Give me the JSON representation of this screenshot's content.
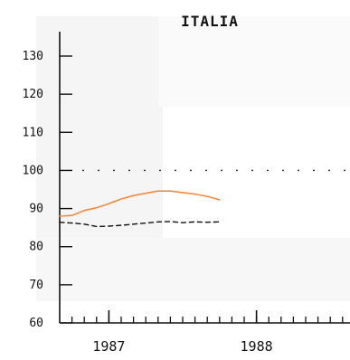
{
  "chart_data": {
    "type": "line",
    "title": "ITALIA",
    "xlabel": "",
    "ylabel": "",
    "x": [
      "1986-11",
      "1986-12",
      "1987-01",
      "1987-02",
      "1987-03",
      "1987-04",
      "1987-05",
      "1987-06",
      "1987-07",
      "1987-08",
      "1987-09",
      "1987-10",
      "1987-11",
      "1987-12",
      "1988-01"
    ],
    "x_ticks": [
      {
        "value": "1987-03",
        "label": "1987"
      },
      {
        "value": "1988-03",
        "label": "1988"
      }
    ],
    "ylim": [
      60,
      135
    ],
    "y_ticks": [
      60,
      70,
      80,
      90,
      100,
      110,
      120,
      130
    ],
    "reference_line": 100,
    "series": [
      {
        "color": "#f08a3c",
        "style": "solid",
        "values": [
          88.0,
          88.2,
          89.5,
          90.2,
          91.3,
          92.5,
          93.4,
          94.0,
          94.6,
          94.6,
          94.2,
          93.8,
          93.2,
          92.3,
          null
        ]
      },
      {
        "color": "#111111",
        "style": "dashed",
        "values": [
          86.4,
          86.2,
          85.9,
          85.3,
          85.4,
          85.6,
          85.9,
          86.2,
          86.5,
          86.6,
          86.3,
          86.5,
          86.4,
          86.5,
          null
        ]
      }
    ],
    "grid": false,
    "legend": "none"
  }
}
